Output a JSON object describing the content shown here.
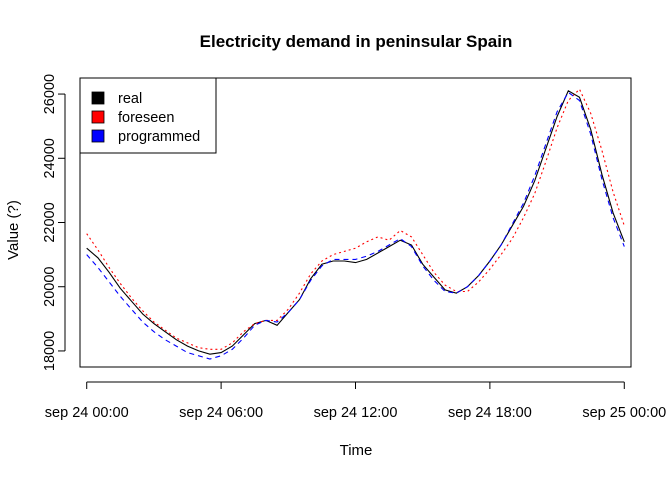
{
  "chart_data": {
    "type": "line",
    "title": "Electricity demand in peninsular Spain",
    "xlabel": "Time",
    "ylabel": "Value (?)",
    "xlim": [
      -0.3,
      24.3
    ],
    "ylim": [
      17500,
      26500
    ],
    "x_ticks": [
      {
        "x": 0,
        "label": "sep 24 00:00"
      },
      {
        "x": 6,
        "label": "sep 24 06:00"
      },
      {
        "x": 12,
        "label": "sep 24 12:00"
      },
      {
        "x": 18,
        "label": "sep 24 18:00"
      },
      {
        "x": 24,
        "label": "sep 25 00:00"
      }
    ],
    "y_ticks": [
      18000,
      20000,
      22000,
      24000,
      26000
    ],
    "legend_position": "top-left",
    "grid": false,
    "series": [
      {
        "name": "real",
        "color": "#000000",
        "dash": "solid",
        "x": [
          0,
          0.5,
          1,
          1.5,
          2,
          2.5,
          3,
          3.5,
          4,
          4.5,
          5,
          5.5,
          6,
          6.5,
          7,
          7.5,
          8,
          8.5,
          9,
          9.5,
          10,
          10.5,
          11,
          11.5,
          12,
          12.5,
          13,
          13.5,
          14,
          14.5,
          15,
          15.5,
          16,
          16.5,
          17,
          17.5,
          18,
          18.5,
          19,
          19.5,
          20,
          20.5,
          21,
          21.5,
          22,
          22.5,
          23,
          23.5,
          24
        ],
        "values": [
          21200,
          20900,
          20450,
          19950,
          19550,
          19150,
          18850,
          18600,
          18350,
          18150,
          18000,
          17900,
          17950,
          18150,
          18500,
          18850,
          18950,
          18800,
          19200,
          19600,
          20250,
          20700,
          20800,
          20800,
          20750,
          20850,
          21050,
          21250,
          21450,
          21300,
          20700,
          20300,
          19900,
          19800,
          20000,
          20350,
          20800,
          21300,
          21900,
          22500,
          23300,
          24300,
          25300,
          26100,
          25900,
          24900,
          23500,
          22300,
          21400
        ]
      },
      {
        "name": "foreseen",
        "color": "#ff0000",
        "dash": "dotted",
        "x": [
          0,
          0.5,
          1,
          1.5,
          2,
          2.5,
          3,
          3.5,
          4,
          4.5,
          5,
          5.5,
          6,
          6.5,
          7,
          7.5,
          8,
          8.5,
          9,
          9.5,
          10,
          10.5,
          11,
          11.5,
          12,
          12.5,
          13,
          13.5,
          14,
          14.5,
          15,
          15.5,
          16,
          16.5,
          17,
          17.5,
          18,
          18.5,
          19,
          19.5,
          20,
          20.5,
          21,
          21.5,
          22,
          22.5,
          23,
          23.5,
          24
        ],
        "values": [
          21650,
          21150,
          20600,
          20100,
          19650,
          19250,
          18900,
          18650,
          18400,
          18250,
          18100,
          18050,
          18050,
          18250,
          18600,
          18850,
          18950,
          18950,
          19300,
          19800,
          20400,
          20800,
          21000,
          21100,
          21200,
          21400,
          21550,
          21450,
          21750,
          21550,
          21000,
          20450,
          20050,
          19850,
          19850,
          20150,
          20550,
          21000,
          21500,
          22150,
          22900,
          23900,
          24950,
          25800,
          26150,
          25400,
          24250,
          22950,
          21900
        ]
      },
      {
        "name": "programmed",
        "color": "#0000ff",
        "dash": "dashed",
        "x": [
          0,
          0.5,
          1,
          1.5,
          2,
          2.5,
          3,
          3.5,
          4,
          4.5,
          5,
          5.5,
          6,
          6.5,
          7,
          7.5,
          8,
          8.5,
          9,
          9.5,
          10,
          10.5,
          11,
          11.5,
          12,
          12.5,
          13,
          13.5,
          14,
          14.5,
          15,
          15.5,
          16,
          16.5,
          17,
          17.5,
          18,
          18.5,
          19,
          19.5,
          20,
          20.5,
          21,
          21.5,
          22,
          22.5,
          23,
          23.5,
          24
        ],
        "values": [
          21000,
          20600,
          20150,
          19700,
          19300,
          18900,
          18600,
          18350,
          18150,
          17950,
          17850,
          17750,
          17850,
          18050,
          18400,
          18800,
          18950,
          18900,
          19200,
          19600,
          20200,
          20650,
          20850,
          20850,
          20850,
          20950,
          21100,
          21300,
          21500,
          21250,
          20650,
          20200,
          19850,
          19800,
          20000,
          20350,
          20800,
          21300,
          21950,
          22600,
          23450,
          24450,
          25450,
          26050,
          25800,
          24750,
          23350,
          22150,
          21250
        ]
      }
    ]
  }
}
